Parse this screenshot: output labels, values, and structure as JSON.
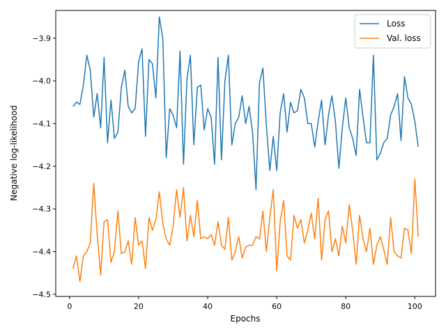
{
  "chart_data": {
    "type": "line",
    "title": "",
    "xlabel": "Epochs",
    "ylabel": "Negative log-likelihood",
    "xlim": [
      -4,
      106
    ],
    "ylim": [
      -4.505,
      -3.835
    ],
    "xticks": [
      0,
      20,
      40,
      60,
      80,
      100
    ],
    "yticks": [
      -4.5,
      -4.4,
      -4.3,
      -4.2,
      -4.1,
      -4.0,
      -3.9
    ],
    "ytick_labels": [
      "−4.5",
      "−4.4",
      "−4.3",
      "−4.2",
      "−4.1",
      "−4.0",
      "−3.9"
    ],
    "grid": false,
    "legend": "top-right",
    "x": [
      1,
      2,
      3,
      4,
      5,
      6,
      7,
      8,
      9,
      10,
      11,
      12,
      13,
      14,
      15,
      16,
      17,
      18,
      19,
      20,
      21,
      22,
      23,
      24,
      25,
      26,
      27,
      28,
      29,
      30,
      31,
      32,
      33,
      34,
      35,
      36,
      37,
      38,
      39,
      40,
      41,
      42,
      43,
      44,
      45,
      46,
      47,
      48,
      49,
      50,
      51,
      52,
      53,
      54,
      55,
      56,
      57,
      58,
      59,
      60,
      61,
      62,
      63,
      64,
      65,
      66,
      67,
      68,
      69,
      70,
      71,
      72,
      73,
      74,
      75,
      76,
      77,
      78,
      79,
      80,
      81,
      82,
      83,
      84,
      85,
      86,
      87,
      88,
      89,
      90,
      91,
      92,
      93,
      94,
      95,
      96,
      97,
      98,
      99,
      100,
      101
    ],
    "series": [
      {
        "name": "Loss",
        "color": "#1f77b4",
        "values": [
          -4.06,
          -4.05,
          -4.055,
          -4.01,
          -3.94,
          -3.975,
          -4.085,
          -4.03,
          -4.11,
          -3.945,
          -4.145,
          -4.045,
          -4.135,
          -4.12,
          -4.015,
          -3.975,
          -4.06,
          -4.075,
          -4.065,
          -3.955,
          -3.925,
          -4.13,
          -3.95,
          -3.96,
          -4.04,
          -3.85,
          -3.9,
          -4.18,
          -4.065,
          -4.08,
          -4.11,
          -3.93,
          -4.195,
          -3.995,
          -3.94,
          -4.15,
          -4.015,
          -4.01,
          -4.115,
          -4.065,
          -4.085,
          -4.195,
          -3.945,
          -4.185,
          -4.0,
          -3.94,
          -4.15,
          -4.1,
          -4.085,
          -4.035,
          -4.1,
          -4.06,
          -4.12,
          -4.255,
          -4.005,
          -3.97,
          -4.105,
          -4.21,
          -4.13,
          -4.21,
          -4.075,
          -4.03,
          -4.12,
          -4.05,
          -4.075,
          -4.07,
          -4.02,
          -4.04,
          -4.1,
          -4.1,
          -4.155,
          -4.095,
          -4.045,
          -4.15,
          -4.08,
          -4.035,
          -4.095,
          -4.205,
          -4.11,
          -4.04,
          -4.11,
          -4.135,
          -4.175,
          -4.02,
          -4.085,
          -4.145,
          -4.145,
          -3.94,
          -4.185,
          -4.17,
          -4.145,
          -4.135,
          -4.08,
          -4.06,
          -4.03,
          -4.14,
          -3.99,
          -4.04,
          -4.055,
          -4.095,
          -4.155
        ]
      },
      {
        "name": "Val. loss",
        "color": "#ff7f0e",
        "values": [
          -4.44,
          -4.41,
          -4.47,
          -4.41,
          -4.4,
          -4.38,
          -4.24,
          -4.36,
          -4.455,
          -4.33,
          -4.325,
          -4.425,
          -4.4,
          -4.305,
          -4.405,
          -4.4,
          -4.375,
          -4.43,
          -4.32,
          -4.385,
          -4.375,
          -4.44,
          -4.32,
          -4.35,
          -4.325,
          -4.26,
          -4.335,
          -4.37,
          -4.385,
          -4.34,
          -4.255,
          -4.32,
          -4.25,
          -4.375,
          -4.315,
          -4.365,
          -4.28,
          -4.37,
          -4.365,
          -4.37,
          -4.36,
          -4.385,
          -4.33,
          -4.385,
          -4.395,
          -4.32,
          -4.42,
          -4.4,
          -4.365,
          -4.415,
          -4.39,
          -4.385,
          -4.385,
          -4.365,
          -4.37,
          -4.305,
          -4.4,
          -4.32,
          -4.255,
          -4.445,
          -4.33,
          -4.28,
          -4.41,
          -4.42,
          -4.315,
          -4.345,
          -4.325,
          -4.38,
          -4.35,
          -4.31,
          -4.37,
          -4.275,
          -4.42,
          -4.325,
          -4.305,
          -4.4,
          -4.37,
          -4.41,
          -4.34,
          -4.38,
          -4.29,
          -4.35,
          -4.43,
          -4.315,
          -4.37,
          -4.4,
          -4.345,
          -4.43,
          -4.385,
          -4.365,
          -4.395,
          -4.43,
          -4.32,
          -4.4,
          -4.41,
          -4.415,
          -4.345,
          -4.35,
          -4.405,
          -4.23,
          -4.365
        ]
      }
    ]
  }
}
